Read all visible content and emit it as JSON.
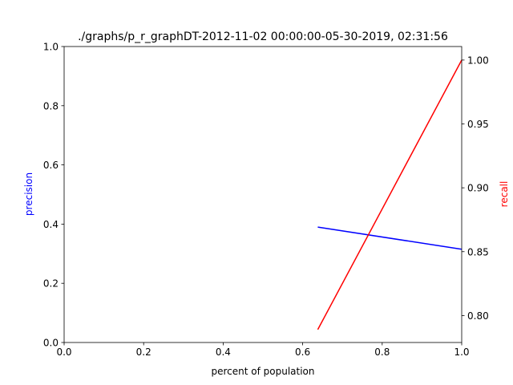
{
  "chart_data": {
    "type": "line",
    "title": "./graphs/p_r_graphDT-2012-11-02 00:00:00-05-30-2019, 02:31:56",
    "xlabel": "percent of population",
    "ylabel_left": "precision",
    "ylabel_right": "recall",
    "xlim": [
      0,
      1
    ],
    "ylim_left": [
      0,
      1
    ],
    "ylim_right": [
      0.7789,
      1.0106
    ],
    "x_ticks": [
      "0.0",
      "0.2",
      "0.4",
      "0.6",
      "0.8",
      "1.0"
    ],
    "y_ticks_left": [
      "0.0",
      "0.2",
      "0.4",
      "0.6",
      "0.8",
      "1.0"
    ],
    "y_ticks_right": [
      "0.80",
      "0.85",
      "0.90",
      "0.95",
      "1.00"
    ],
    "series": [
      {
        "axis": "left",
        "color": "#0000ff",
        "x": [
          0.638,
          1.0
        ],
        "y": [
          0.39,
          0.315
        ]
      },
      {
        "axis": "right",
        "color": "#ff0000",
        "x": [
          0.638,
          1.0
        ],
        "y": [
          0.789,
          1.0
        ]
      }
    ],
    "label_colors": {
      "left": "#0000ff",
      "right": "#ff0000"
    }
  }
}
